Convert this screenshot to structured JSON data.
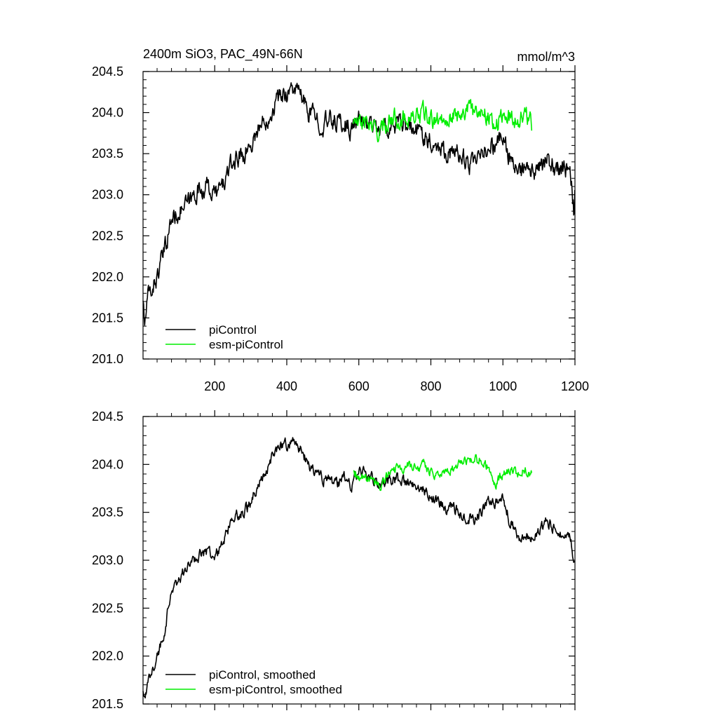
{
  "chart_data": [
    {
      "type": "line",
      "title": "2400m SiO3, PAC_49N-66N",
      "units": "mmol/m^3",
      "xlim": [
        1,
        1200
      ],
      "ylim": [
        201.0,
        204.5
      ],
      "xticks": [
        200,
        400,
        600,
        800,
        1000,
        1200
      ],
      "xtick_labels": [
        "200",
        "400",
        "600",
        "800",
        "1000",
        "1200"
      ],
      "yticks": [
        201.0,
        201.5,
        202.0,
        202.5,
        203.0,
        203.5,
        204.0,
        204.5
      ],
      "ytick_labels": [
        "201.0",
        "201.5",
        "202.0",
        "202.5",
        "203.0",
        "203.5",
        "204.0",
        "204.5"
      ],
      "legend_position": "bottom-left",
      "series": [
        {
          "name": "piControl",
          "color": "#000000",
          "noise": 0.12,
          "keypoints": [
            [
              1,
              201.75
            ],
            [
              5,
              201.4
            ],
            [
              15,
              201.75
            ],
            [
              40,
              202.0
            ],
            [
              60,
              202.3
            ],
            [
              80,
              202.7
            ],
            [
              100,
              202.8
            ],
            [
              130,
              202.9
            ],
            [
              150,
              203.05
            ],
            [
              180,
              203.1
            ],
            [
              200,
              203.0
            ],
            [
              220,
              203.1
            ],
            [
              240,
              203.3
            ],
            [
              260,
              203.45
            ],
            [
              280,
              203.5
            ],
            [
              300,
              203.6
            ],
            [
              320,
              203.8
            ],
            [
              340,
              203.9
            ],
            [
              360,
              204.05
            ],
            [
              380,
              204.2
            ],
            [
              400,
              204.25
            ],
            [
              420,
              204.3
            ],
            [
              440,
              204.2
            ],
            [
              460,
              204.0
            ],
            [
              480,
              203.95
            ],
            [
              500,
              203.85
            ],
            [
              520,
              203.9
            ],
            [
              540,
              203.9
            ],
            [
              560,
              203.85
            ],
            [
              580,
              203.8
            ],
            [
              600,
              203.9
            ],
            [
              620,
              203.9
            ],
            [
              640,
              203.85
            ],
            [
              660,
              203.8
            ],
            [
              700,
              203.85
            ],
            [
              740,
              203.8
            ],
            [
              780,
              203.75
            ],
            [
              800,
              203.65
            ],
            [
              820,
              203.6
            ],
            [
              840,
              203.55
            ],
            [
              860,
              203.5
            ],
            [
              880,
              203.5
            ],
            [
              900,
              203.4
            ],
            [
              920,
              203.35
            ],
            [
              940,
              203.45
            ],
            [
              960,
              203.6
            ],
            [
              980,
              203.6
            ],
            [
              1000,
              203.7
            ],
            [
              1020,
              203.45
            ],
            [
              1040,
              203.25
            ],
            [
              1060,
              203.3
            ],
            [
              1080,
              203.25
            ],
            [
              1100,
              203.3
            ],
            [
              1120,
              203.4
            ],
            [
              1140,
              203.35
            ],
            [
              1160,
              203.3
            ],
            [
              1180,
              203.3
            ],
            [
              1190,
              203.15
            ],
            [
              1197,
              202.8
            ],
            [
              1200,
              203.1
            ]
          ]
        },
        {
          "name": "esm-piControl",
          "color": "#00ee00",
          "noise": 0.11,
          "keypoints": [
            [
              585,
              203.9
            ],
            [
              600,
              203.85
            ],
            [
              620,
              203.9
            ],
            [
              640,
              203.8
            ],
            [
              660,
              203.75
            ],
            [
              680,
              203.9
            ],
            [
              700,
              203.95
            ],
            [
              720,
              203.9
            ],
            [
              740,
              203.95
            ],
            [
              760,
              203.95
            ],
            [
              780,
              204.0
            ],
            [
              800,
              203.9
            ],
            [
              820,
              203.9
            ],
            [
              840,
              203.95
            ],
            [
              860,
              203.95
            ],
            [
              880,
              204.0
            ],
            [
              900,
              204.05
            ],
            [
              920,
              204.0
            ],
            [
              940,
              204.05
            ],
            [
              960,
              203.95
            ],
            [
              980,
              203.85
            ],
            [
              1000,
              203.95
            ],
            [
              1020,
              203.95
            ],
            [
              1040,
              203.9
            ],
            [
              1060,
              204.0
            ],
            [
              1080,
              203.85
            ]
          ]
        }
      ]
    },
    {
      "type": "line",
      "title": "",
      "xlim": [
        1,
        1200
      ],
      "ylim": [
        201.5,
        204.5
      ],
      "xticks": [
        200,
        400,
        600,
        800,
        1000,
        1200
      ],
      "yticks": [
        201.5,
        202.0,
        202.5,
        203.0,
        203.5,
        204.0,
        204.5
      ],
      "ytick_labels": [
        "201.5",
        "202.0",
        "202.5",
        "203.0",
        "203.5",
        "204.0",
        "204.5"
      ],
      "legend_position": "bottom-left",
      "series": [
        {
          "name": "piControl, smoothed",
          "color": "#000000",
          "noise": 0.06,
          "keypoints": [
            [
              1,
              201.65
            ],
            [
              5,
              201.5
            ],
            [
              20,
              201.8
            ],
            [
              40,
              202.0
            ],
            [
              60,
              202.25
            ],
            [
              80,
              202.7
            ],
            [
              100,
              202.8
            ],
            [
              130,
              202.95
            ],
            [
              150,
              203.05
            ],
            [
              180,
              203.1
            ],
            [
              200,
              203.05
            ],
            [
              220,
              203.15
            ],
            [
              240,
              203.35
            ],
            [
              260,
              203.45
            ],
            [
              280,
              203.5
            ],
            [
              300,
              203.6
            ],
            [
              320,
              203.8
            ],
            [
              340,
              203.9
            ],
            [
              360,
              204.1
            ],
            [
              380,
              204.2
            ],
            [
              400,
              204.2
            ],
            [
              420,
              204.25
            ],
            [
              440,
              204.15
            ],
            [
              460,
              204.0
            ],
            [
              480,
              203.9
            ],
            [
              500,
              203.85
            ],
            [
              520,
              203.85
            ],
            [
              540,
              203.8
            ],
            [
              560,
              203.85
            ],
            [
              580,
              203.75
            ],
            [
              600,
              203.95
            ],
            [
              620,
              203.9
            ],
            [
              640,
              203.85
            ],
            [
              660,
              203.8
            ],
            [
              700,
              203.85
            ],
            [
              740,
              203.8
            ],
            [
              780,
              203.75
            ],
            [
              800,
              203.65
            ],
            [
              820,
              203.6
            ],
            [
              840,
              203.55
            ],
            [
              860,
              203.55
            ],
            [
              880,
              203.5
            ],
            [
              900,
              203.45
            ],
            [
              920,
              203.4
            ],
            [
              940,
              203.5
            ],
            [
              960,
              203.6
            ],
            [
              980,
              203.6
            ],
            [
              1000,
              203.65
            ],
            [
              1020,
              203.4
            ],
            [
              1040,
              203.25
            ],
            [
              1060,
              203.25
            ],
            [
              1080,
              203.25
            ],
            [
              1100,
              203.3
            ],
            [
              1120,
              203.4
            ],
            [
              1140,
              203.35
            ],
            [
              1160,
              203.3
            ],
            [
              1180,
              203.3
            ],
            [
              1190,
              203.2
            ],
            [
              1197,
              202.9
            ],
            [
              1200,
              203.0
            ]
          ]
        },
        {
          "name": "esm-piControl, smoothed",
          "color": "#00ee00",
          "noise": 0.05,
          "keypoints": [
            [
              585,
              203.95
            ],
            [
              600,
              203.85
            ],
            [
              620,
              203.85
            ],
            [
              640,
              203.8
            ],
            [
              660,
              203.75
            ],
            [
              680,
              203.9
            ],
            [
              700,
              203.95
            ],
            [
              720,
              203.95
            ],
            [
              740,
              204.0
            ],
            [
              760,
              203.95
            ],
            [
              780,
              204.0
            ],
            [
              800,
              203.9
            ],
            [
              820,
              203.9
            ],
            [
              840,
              203.95
            ],
            [
              860,
              203.95
            ],
            [
              880,
              204.0
            ],
            [
              900,
              204.05
            ],
            [
              920,
              204.05
            ],
            [
              940,
              204.05
            ],
            [
              960,
              203.95
            ],
            [
              980,
              203.8
            ],
            [
              1000,
              203.9
            ],
            [
              1020,
              203.95
            ],
            [
              1040,
              203.9
            ],
            [
              1060,
              203.95
            ],
            [
              1080,
              203.9
            ]
          ]
        }
      ]
    }
  ]
}
